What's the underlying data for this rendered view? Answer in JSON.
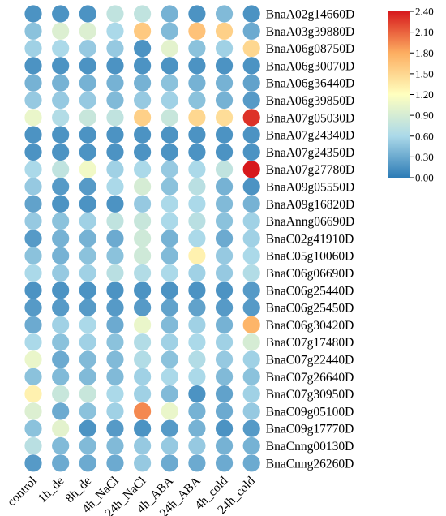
{
  "chart_data": {
    "type": "heatmap",
    "style": "dot-matrix",
    "rows": [
      "BnaA02g14660D",
      "BnaA03g39880D",
      "BnaA06g08750D",
      "BnaA06g30070D",
      "BnaA06g36440D",
      "BnaA06g39850D",
      "BnaA07g05030D",
      "BnaA07g24340D",
      "BnaA07g24350D",
      "BnaA07g27780D",
      "BnaA09g05550D",
      "BnaA09g16820D",
      "BnaAnng06690D",
      "BnaC02g41910D",
      "BnaC05g10060D",
      "BnaC06g06690D",
      "BnaC06g25440D",
      "BnaC06g25450D",
      "BnaC06g30420D",
      "BnaC07g17480D",
      "BnaC07g22440D",
      "BnaC07g26640D",
      "BnaC07g30950D",
      "BnaC09g05100D",
      "BnaC09g17770D",
      "BnaCnng00130D",
      "BnaCnng26260D"
    ],
    "columns": [
      "control",
      "1h_de",
      "8h_de",
      "4h_NaCl",
      "24h_NaCl",
      "4h_ABA",
      "24h_ABA",
      "4h_cold",
      "24h_cold"
    ],
    "values": [
      [
        0.15,
        0.15,
        0.15,
        0.75,
        0.75,
        0.35,
        0.15,
        0.4,
        0.15
      ],
      [
        0.45,
        0.95,
        0.95,
        0.6,
        1.6,
        0.4,
        1.65,
        1.55,
        0.3
      ],
      [
        0.55,
        0.6,
        0.5,
        0.5,
        0.15,
        1.0,
        0.45,
        0.55,
        1.5
      ],
      [
        0.15,
        0.15,
        0.15,
        0.15,
        0.15,
        0.15,
        0.15,
        0.15,
        0.15
      ],
      [
        0.35,
        0.35,
        0.35,
        0.35,
        0.35,
        0.45,
        0.35,
        0.35,
        0.25
      ],
      [
        0.5,
        0.5,
        0.5,
        0.4,
        0.5,
        0.55,
        0.45,
        0.35,
        0.2
      ],
      [
        1.05,
        0.65,
        0.8,
        0.75,
        1.55,
        0.8,
        1.5,
        1.45,
        2.3
      ],
      [
        0.15,
        0.15,
        0.15,
        0.15,
        0.15,
        0.15,
        0.15,
        0.15,
        0.15
      ],
      [
        0.15,
        0.15,
        0.15,
        0.15,
        0.15,
        0.15,
        0.15,
        0.15,
        0.15
      ],
      [
        0.6,
        0.75,
        1.1,
        0.55,
        0.6,
        0.5,
        0.6,
        0.75,
        2.4
      ],
      [
        0.5,
        0.2,
        0.2,
        0.6,
        0.9,
        0.45,
        0.7,
        0.35,
        0.15
      ],
      [
        0.25,
        0.15,
        0.15,
        0.15,
        0.5,
        0.6,
        0.6,
        0.4,
        0.35
      ],
      [
        0.5,
        0.45,
        0.55,
        0.75,
        0.8,
        0.6,
        0.7,
        0.45,
        0.55
      ],
      [
        0.2,
        0.35,
        0.35,
        0.3,
        0.85,
        0.35,
        0.6,
        0.3,
        0.55
      ],
      [
        0.45,
        0.35,
        0.45,
        0.45,
        0.85,
        0.4,
        1.3,
        0.5,
        0.6
      ],
      [
        0.6,
        0.5,
        0.55,
        0.7,
        0.65,
        0.6,
        0.55,
        0.5,
        0.65
      ],
      [
        0.15,
        0.15,
        0.15,
        0.15,
        0.15,
        0.15,
        0.15,
        0.15,
        0.2
      ],
      [
        0.2,
        0.2,
        0.2,
        0.2,
        0.2,
        0.25,
        0.25,
        0.2,
        0.2
      ],
      [
        0.3,
        0.55,
        0.6,
        0.3,
        1.05,
        0.4,
        0.55,
        0.35,
        1.75
      ],
      [
        0.6,
        0.45,
        0.55,
        0.45,
        0.65,
        0.55,
        0.6,
        0.55,
        0.9
      ],
      [
        1.05,
        0.3,
        0.4,
        0.4,
        0.65,
        0.45,
        0.65,
        0.5,
        0.55
      ],
      [
        0.45,
        0.4,
        0.4,
        0.4,
        0.55,
        0.6,
        0.6,
        0.4,
        0.45
      ],
      [
        1.3,
        0.8,
        0.8,
        0.6,
        0.55,
        0.4,
        0.15,
        0.25,
        0.55
      ],
      [
        0.95,
        0.3,
        0.45,
        0.55,
        1.95,
        1.05,
        0.35,
        0.3,
        0.5
      ],
      [
        0.45,
        1.0,
        0.15,
        0.2,
        0.15,
        0.2,
        0.35,
        0.15,
        0.2
      ],
      [
        0.7,
        0.4,
        0.4,
        0.4,
        0.5,
        0.5,
        0.5,
        0.35,
        0.35
      ],
      [
        0.2,
        0.3,
        0.3,
        0.3,
        0.5,
        0.3,
        0.3,
        0.3,
        0.3
      ]
    ],
    "colorbar": {
      "min": 0.0,
      "max": 2.4,
      "ticks": [
        "0.00",
        "0.30",
        "0.60",
        "0.90",
        "1.20",
        "1.50",
        "1.80",
        "2.10",
        "2.40"
      ],
      "colors": [
        "#2c7bb6",
        "#abd9e9",
        "#ffffbf",
        "#fdae61",
        "#d7191c"
      ]
    },
    "grid": false,
    "legend_position": "top-right"
  }
}
